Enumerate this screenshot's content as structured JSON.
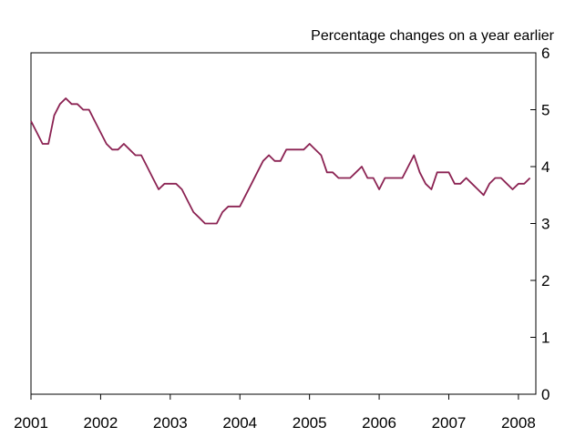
{
  "chart_data": {
    "type": "line",
    "title": "",
    "unit_label": "Percentage changes on a year earlier",
    "xlabel": "",
    "ylabel": "",
    "y_axis_side": "right",
    "grid": false,
    "legend": "none",
    "xlim": [
      2001.0,
      2008.25
    ],
    "ylim": [
      0,
      6
    ],
    "x_ticks": [
      "2001",
      "2002",
      "2003",
      "2004",
      "2005",
      "2006",
      "2007",
      "2008"
    ],
    "y_ticks": [
      "0",
      "1",
      "2",
      "3",
      "4",
      "5",
      "6"
    ],
    "line_color": "#8b2252",
    "series": [
      {
        "x": [
          "2001-01",
          "2001-02",
          "2001-03",
          "2001-04",
          "2001-05",
          "2001-06",
          "2001-07",
          "2001-08",
          "2001-09",
          "2001-10",
          "2001-11",
          "2001-12",
          "2002-01",
          "2002-02",
          "2002-03",
          "2002-04",
          "2002-05",
          "2002-06",
          "2002-07",
          "2002-08",
          "2002-09",
          "2002-10",
          "2002-11",
          "2002-12",
          "2003-01",
          "2003-02",
          "2003-03",
          "2003-04",
          "2003-05",
          "2003-06",
          "2003-07",
          "2003-08",
          "2003-09",
          "2003-10",
          "2003-11",
          "2003-12",
          "2004-01",
          "2004-02",
          "2004-03",
          "2004-04",
          "2004-05",
          "2004-06",
          "2004-07",
          "2004-08",
          "2004-09",
          "2004-10",
          "2004-11",
          "2004-12",
          "2005-01",
          "2005-02",
          "2005-03",
          "2005-04",
          "2005-05",
          "2005-06",
          "2005-07",
          "2005-08",
          "2005-09",
          "2005-10",
          "2005-11",
          "2005-12",
          "2006-01",
          "2006-02",
          "2006-03",
          "2006-04",
          "2006-05",
          "2006-06",
          "2006-07",
          "2006-08",
          "2006-09",
          "2006-10",
          "2006-11",
          "2006-12",
          "2007-01",
          "2007-02",
          "2007-03",
          "2007-04",
          "2007-05",
          "2007-06",
          "2007-07",
          "2007-08",
          "2007-09",
          "2007-10",
          "2007-11",
          "2007-12",
          "2008-01",
          "2008-02",
          "2008-03"
        ],
        "values": [
          4.8,
          4.6,
          4.4,
          4.4,
          4.9,
          5.1,
          5.2,
          5.1,
          5.1,
          5.0,
          5.0,
          4.8,
          4.6,
          4.4,
          4.3,
          4.3,
          4.4,
          4.3,
          4.2,
          4.2,
          4.0,
          3.8,
          3.6,
          3.7,
          3.7,
          3.7,
          3.6,
          3.4,
          3.2,
          3.1,
          3.0,
          3.0,
          3.0,
          3.2,
          3.3,
          3.3,
          3.3,
          3.5,
          3.7,
          3.9,
          4.1,
          4.2,
          4.1,
          4.1,
          4.3,
          4.3,
          4.3,
          4.3,
          4.4,
          4.3,
          4.2,
          3.9,
          3.9,
          3.8,
          3.8,
          3.8,
          3.9,
          4.0,
          3.8,
          3.8,
          3.6,
          3.8,
          3.8,
          3.8,
          3.8,
          4.0,
          4.2,
          3.9,
          3.7,
          3.6,
          3.9,
          3.9,
          3.9,
          3.7,
          3.7,
          3.8,
          3.7,
          3.6,
          3.5,
          3.7,
          3.8,
          3.8,
          3.7,
          3.6,
          3.7,
          3.7,
          3.8
        ]
      }
    ]
  }
}
